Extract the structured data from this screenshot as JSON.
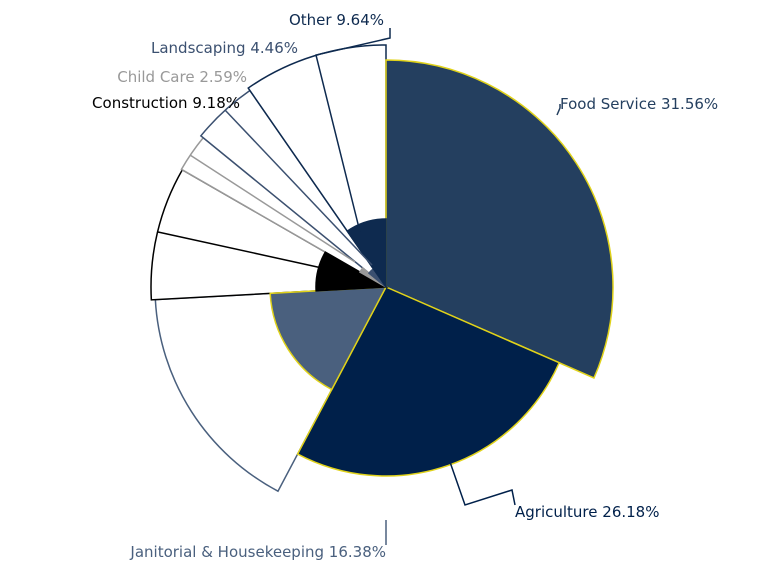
{
  "chart_data": {
    "type": "pie",
    "categories": [
      "Food Service",
      "Agriculture",
      "Janitorial & Housekeeping",
      "Construction",
      "Child Care",
      "Landscaping",
      "Other"
    ],
    "values": [
      31.56,
      26.18,
      16.38,
      9.18,
      2.59,
      4.46,
      9.64
    ],
    "value_labels": [
      "31.56%",
      "26.18%",
      "16.38%",
      "9.18%",
      "2.59%",
      "4.46%",
      "9.64%"
    ],
    "colors": [
      "#243f5f",
      "#00204a",
      "#4a607e",
      "#000000",
      "#999999",
      "#3b5070",
      "#0e2a4f"
    ]
  }
}
